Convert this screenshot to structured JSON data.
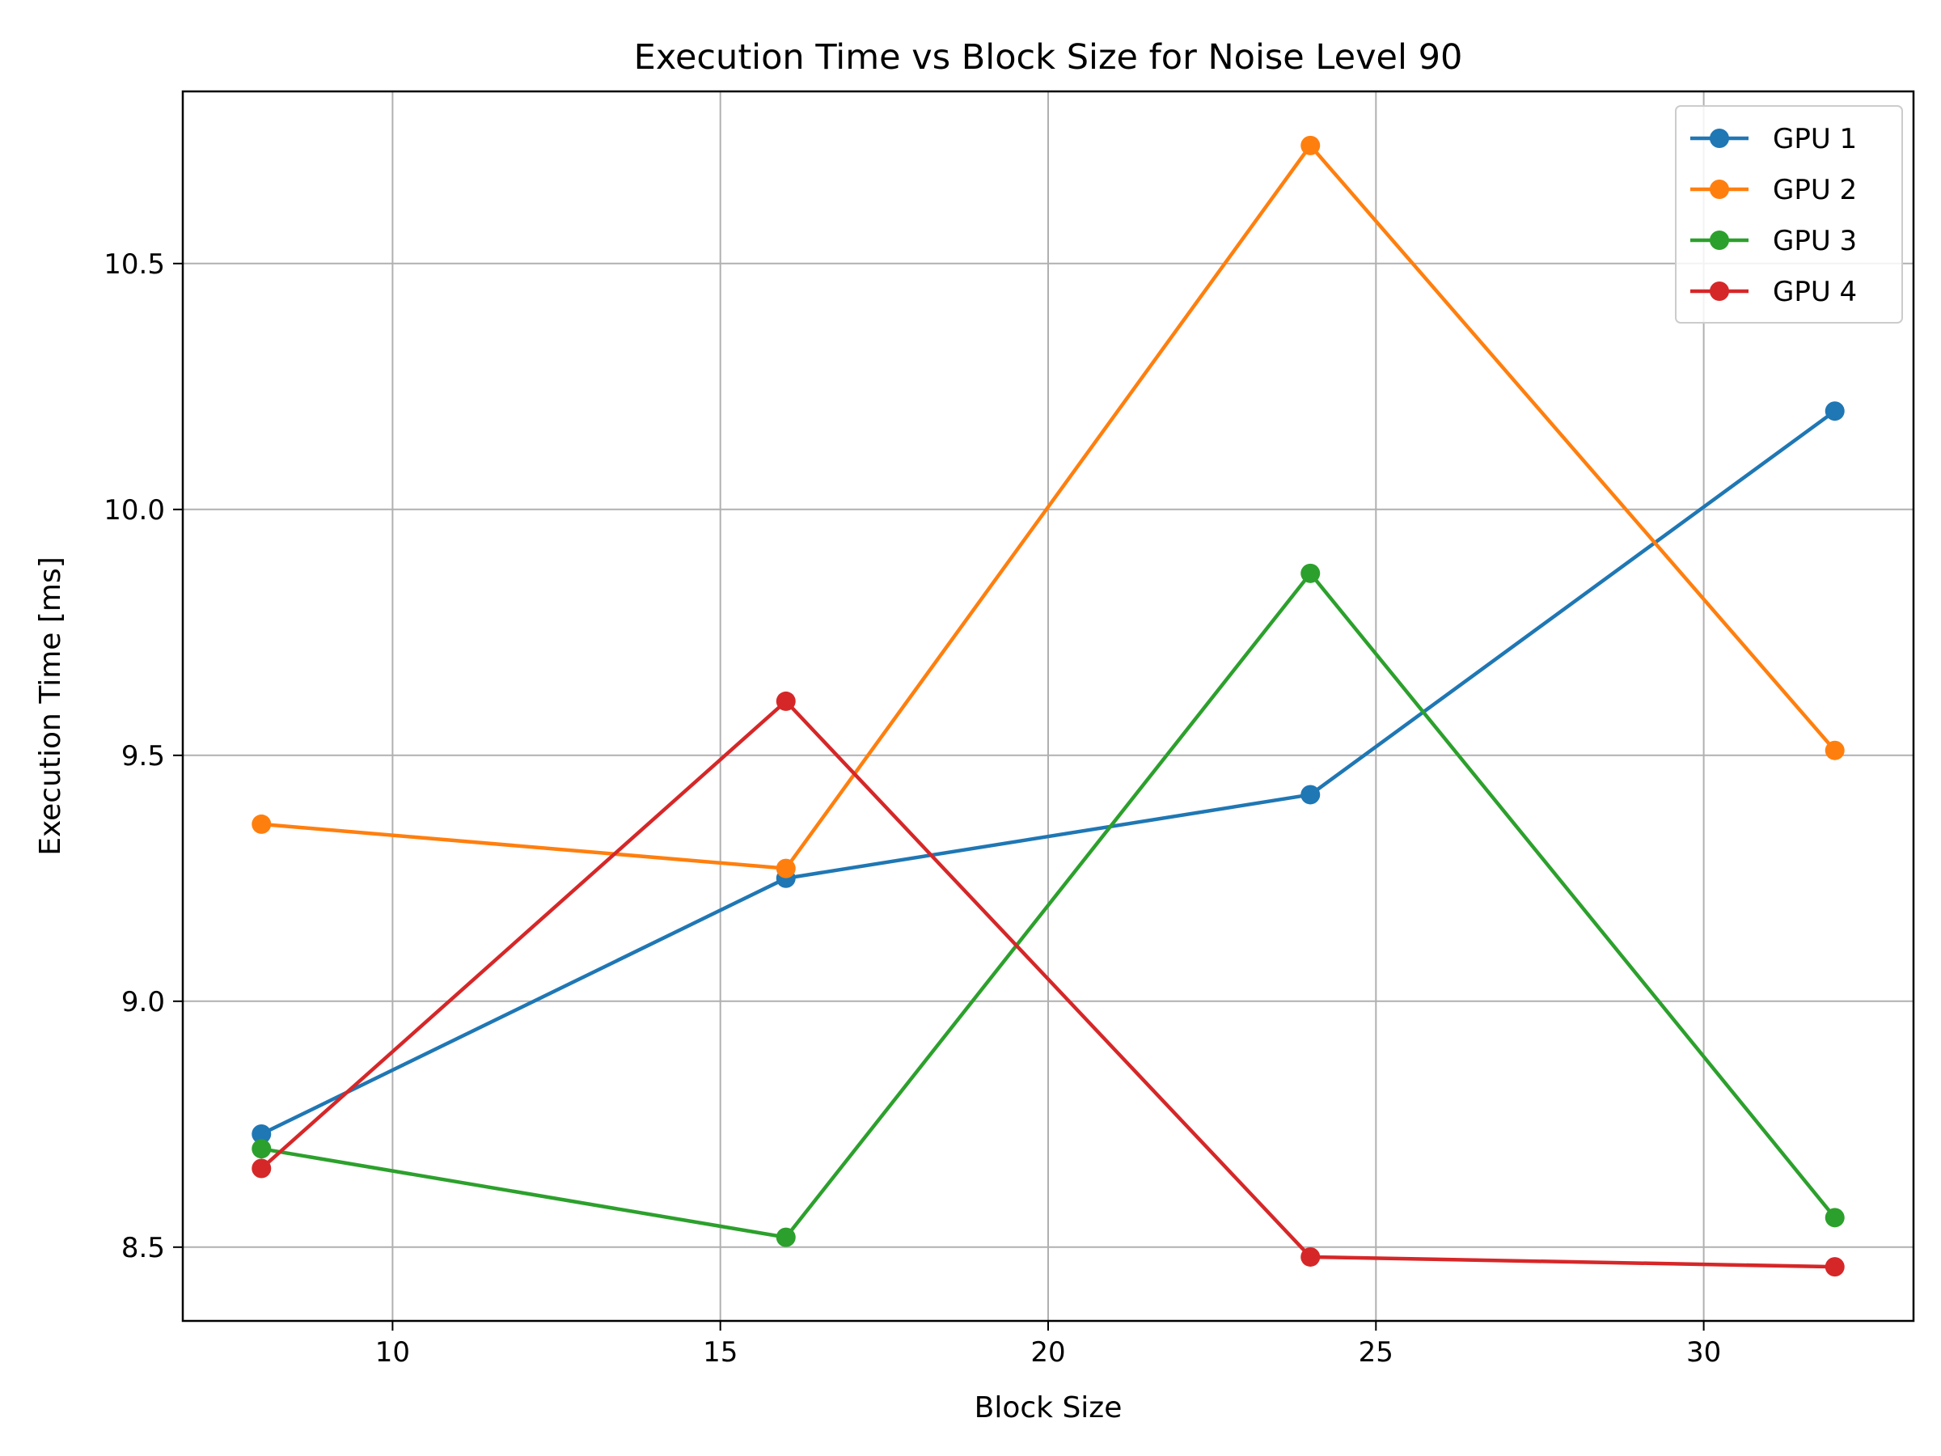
{
  "chart_data": {
    "type": "line",
    "title": "Execution Time vs Block Size for Noise Level 90",
    "xlabel": "Block Size",
    "ylabel": "Execution Time [ms]",
    "x": [
      8,
      16,
      24,
      32
    ],
    "xlim": [
      6.8,
      33.2
    ],
    "ylim": [
      8.35,
      10.85
    ],
    "xticks": [
      10,
      15,
      20,
      25,
      30
    ],
    "xtick_labels": [
      "10",
      "15",
      "20",
      "25",
      "30"
    ],
    "yticks": [
      8.5,
      9.0,
      9.5,
      10.0,
      10.5
    ],
    "ytick_labels": [
      "8.5",
      "9.0",
      "9.5",
      "10.0",
      "10.5"
    ],
    "grid": true,
    "legend_position": "top-right",
    "series": [
      {
        "name": "GPU 1",
        "color": "#1f77b4",
        "values": [
          8.73,
          9.25,
          9.42,
          10.2
        ]
      },
      {
        "name": "GPU 2",
        "color": "#ff7f0e",
        "values": [
          9.36,
          9.27,
          10.74,
          9.51
        ]
      },
      {
        "name": "GPU 3",
        "color": "#2ca02c",
        "values": [
          8.7,
          8.52,
          9.87,
          8.56
        ]
      },
      {
        "name": "GPU 4",
        "color": "#d62728",
        "values": [
          8.66,
          9.61,
          8.48,
          8.46
        ]
      }
    ]
  }
}
